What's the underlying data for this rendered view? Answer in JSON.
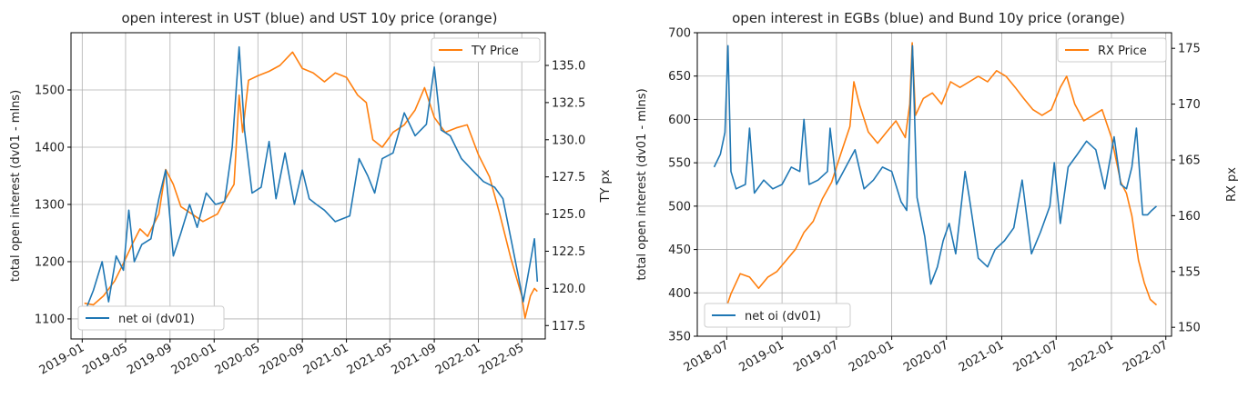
{
  "chart_data": [
    {
      "type": "line",
      "title": "open interest in UST (blue) and UST 10y price (orange)",
      "ylabel": "total open interest (dv01 - mlns)",
      "ylabel_right": "TY px",
      "x_ticks": [
        "2019-01",
        "2019-05",
        "2019-09",
        "2020-01",
        "2020-05",
        "2020-09",
        "2021-01",
        "2021-05",
        "2021-09",
        "2022-01",
        "2022-05"
      ],
      "xlim": [
        "2018-12-01",
        "2022-07-05"
      ],
      "y_ticks": [
        "1100",
        "1200",
        "1300",
        "1400",
        "1500"
      ],
      "ylim": [
        1065,
        1600
      ],
      "y2_ticks": [
        "117.5",
        "120.0",
        "122.5",
        "125.0",
        "127.5",
        "130.0",
        "132.5",
        "135.0"
      ],
      "y2lim": [
        116.6,
        137.2
      ],
      "grid": true,
      "series": [
        {
          "name": "net oi (dv01)",
          "axis": "left",
          "color": "#1f77b4",
          "legend_position": "lower-left",
          "x": [
            "2019-01-07",
            "2019-02-01",
            "2019-02-25",
            "2019-03-15",
            "2019-04-05",
            "2019-04-25",
            "2019-05-10",
            "2019-05-25",
            "2019-06-15",
            "2019-07-10",
            "2019-08-01",
            "2019-08-20",
            "2019-09-10",
            "2019-10-01",
            "2019-10-25",
            "2019-11-15",
            "2019-12-10",
            "2020-01-05",
            "2020-01-30",
            "2020-02-20",
            "2020-03-10",
            "2020-03-25",
            "2020-04-15",
            "2020-05-10",
            "2020-06-01",
            "2020-06-20",
            "2020-07-15",
            "2020-08-10",
            "2020-09-01",
            "2020-09-20",
            "2020-10-10",
            "2020-11-01",
            "2020-12-01",
            "2021-01-10",
            "2021-02-05",
            "2021-03-01",
            "2021-03-20",
            "2021-04-10",
            "2021-05-10",
            "2021-06-10",
            "2021-07-10",
            "2021-08-10",
            "2021-09-01",
            "2021-09-20",
            "2021-10-15",
            "2021-11-15",
            "2021-12-15",
            "2022-01-15",
            "2022-02-15",
            "2022-03-10",
            "2022-04-01",
            "2022-04-20",
            "2022-05-05",
            "2022-05-25",
            "2022-06-05",
            "2022-06-13"
          ],
          "values": [
            1110,
            1150,
            1200,
            1130,
            1210,
            1185,
            1290,
            1200,
            1230,
            1240,
            1310,
            1360,
            1210,
            1250,
            1300,
            1260,
            1320,
            1300,
            1305,
            1400,
            1575,
            1430,
            1320,
            1330,
            1410,
            1310,
            1390,
            1300,
            1360,
            1310,
            1300,
            1290,
            1270,
            1280,
            1380,
            1350,
            1320,
            1380,
            1390,
            1460,
            1420,
            1440,
            1540,
            1430,
            1420,
            1380,
            1360,
            1340,
            1330,
            1310,
            1240,
            1180,
            1130,
            1200,
            1240,
            1165
          ]
        },
        {
          "name": "TY Price",
          "axis": "right",
          "color": "#ff7f0e",
          "legend_position": "upper-right",
          "x": [
            "2019-01-07",
            "2019-02-01",
            "2019-03-01",
            "2019-04-01",
            "2019-05-01",
            "2019-05-20",
            "2019-06-10",
            "2019-07-01",
            "2019-08-01",
            "2019-08-20",
            "2019-09-10",
            "2019-10-01",
            "2019-11-01",
            "2019-12-01",
            "2020-01-10",
            "2020-02-01",
            "2020-02-25",
            "2020-03-10",
            "2020-03-20",
            "2020-04-05",
            "2020-05-01",
            "2020-06-01",
            "2020-07-01",
            "2020-08-05",
            "2020-09-01",
            "2020-10-01",
            "2020-11-01",
            "2020-12-01",
            "2021-01-01",
            "2021-02-01",
            "2021-02-25",
            "2021-03-15",
            "2021-04-10",
            "2021-05-10",
            "2021-06-10",
            "2021-07-10",
            "2021-08-05",
            "2021-09-01",
            "2021-10-01",
            "2021-11-01",
            "2021-12-01",
            "2022-01-01",
            "2022-02-01",
            "2022-03-01",
            "2022-04-01",
            "2022-05-01",
            "2022-05-10",
            "2022-05-25",
            "2022-06-05",
            "2022-06-13"
          ],
          "values": [
            119.0,
            118.9,
            119.5,
            120.5,
            122.0,
            123.0,
            124.0,
            123.5,
            125.0,
            128.0,
            127.0,
            125.5,
            125.0,
            124.5,
            125.0,
            126.0,
            127.0,
            133.0,
            130.5,
            134.0,
            134.3,
            134.6,
            135.0,
            135.9,
            134.8,
            134.5,
            133.9,
            134.5,
            134.2,
            133.0,
            132.5,
            130.0,
            129.5,
            130.5,
            131.0,
            132.0,
            133.5,
            131.5,
            130.5,
            130.8,
            131.0,
            129.0,
            127.5,
            125.0,
            122.0,
            119.5,
            118.0,
            119.5,
            120.0,
            119.8
          ]
        }
      ]
    },
    {
      "type": "line",
      "title": "open interest in EGBs (blue) and Bund 10y price (orange)",
      "ylabel": "total open interest (dv01 - mlns)",
      "ylabel_right": "RX px",
      "x_ticks": [
        "2018-07",
        "2019-01",
        "2019-07",
        "2020-01",
        "2020-07",
        "2021-01",
        "2021-07",
        "2022-01",
        "2022-07"
      ],
      "xlim": [
        "2018-03-25",
        "2022-07-20"
      ],
      "y_ticks": [
        "350",
        "400",
        "450",
        "500",
        "550",
        "600",
        "650",
        "700"
      ],
      "ylim": [
        350,
        700
      ],
      "y2_ticks": [
        "150",
        "155",
        "160",
        "165",
        "170",
        "175"
      ],
      "y2lim": [
        149.2,
        176.4
      ],
      "grid": true,
      "series": [
        {
          "name": "net oi (dv01)",
          "axis": "left",
          "color": "#1f77b4",
          "legend_position": "lower-left",
          "x": [
            "2018-05-20",
            "2018-06-10",
            "2018-06-25",
            "2018-07-05",
            "2018-07-15",
            "2018-08-01",
            "2018-09-01",
            "2018-09-15",
            "2018-10-01",
            "2018-11-01",
            "2018-12-01",
            "2019-01-01",
            "2019-02-01",
            "2019-03-01",
            "2019-03-15",
            "2019-04-01",
            "2019-05-01",
            "2019-06-01",
            "2019-06-10",
            "2019-07-01",
            "2019-08-01",
            "2019-09-01",
            "2019-10-01",
            "2019-11-01",
            "2019-12-01",
            "2020-01-01",
            "2020-02-01",
            "2020-02-20",
            "2020-03-10",
            "2020-03-25",
            "2020-04-20",
            "2020-05-10",
            "2020-06-01",
            "2020-06-20",
            "2020-07-10",
            "2020-08-01",
            "2020-09-01",
            "2020-09-15",
            "2020-10-15",
            "2020-11-15",
            "2020-12-10",
            "2021-01-10",
            "2021-02-10",
            "2021-03-10",
            "2021-04-10",
            "2021-05-10",
            "2021-06-10",
            "2021-06-25",
            "2021-07-15",
            "2021-08-10",
            "2021-09-10",
            "2021-10-10",
            "2021-11-10",
            "2021-12-10",
            "2022-01-10",
            "2022-02-01",
            "2022-02-20",
            "2022-03-10",
            "2022-03-25",
            "2022-04-15",
            "2022-05-01",
            "2022-05-15",
            "2022-05-31"
          ],
          "values": [
            545,
            560,
            585,
            685,
            540,
            520,
            525,
            590,
            515,
            530,
            520,
            525,
            545,
            540,
            600,
            525,
            530,
            540,
            590,
            525,
            545,
            565,
            520,
            530,
            545,
            540,
            505,
            495,
            685,
            510,
            465,
            410,
            430,
            460,
            480,
            445,
            540,
            510,
            440,
            430,
            450,
            460,
            475,
            530,
            445,
            470,
            500,
            550,
            480,
            545,
            560,
            575,
            565,
            520,
            580,
            525,
            520,
            545,
            590,
            490,
            490,
            495,
            500
          ]
        },
        {
          "name": "RX Price",
          "axis": "right",
          "color": "#ff7f0e",
          "legend_position": "upper-right",
          "x": [
            "2018-05-20",
            "2018-06-20",
            "2018-07-15",
            "2018-08-15",
            "2018-09-15",
            "2018-10-15",
            "2018-11-15",
            "2018-12-15",
            "2019-01-15",
            "2019-02-15",
            "2019-03-15",
            "2019-04-15",
            "2019-05-15",
            "2019-06-15",
            "2019-07-15",
            "2019-08-15",
            "2019-08-28",
            "2019-09-15",
            "2019-10-15",
            "2019-11-15",
            "2019-12-15",
            "2020-01-15",
            "2020-02-15",
            "2020-03-01",
            "2020-03-09",
            "2020-03-20",
            "2020-04-15",
            "2020-05-15",
            "2020-06-15",
            "2020-07-15",
            "2020-08-15",
            "2020-09-15",
            "2020-10-15",
            "2020-11-15",
            "2020-12-15",
            "2021-01-15",
            "2021-02-15",
            "2021-03-15",
            "2021-04-15",
            "2021-05-15",
            "2021-06-15",
            "2021-07-15",
            "2021-08-05",
            "2021-09-01",
            "2021-10-01",
            "2021-11-01",
            "2021-12-01",
            "2022-01-01",
            "2022-02-01",
            "2022-02-20",
            "2022-03-10",
            "2022-04-01",
            "2022-04-20",
            "2022-05-10",
            "2022-05-31"
          ],
          "values": [
            150.2,
            151.0,
            153.0,
            154.8,
            154.5,
            153.5,
            154.5,
            155.0,
            156.0,
            157.0,
            158.5,
            159.5,
            161.5,
            163.0,
            165.5,
            168.0,
            172.0,
            170.0,
            167.5,
            166.5,
            167.5,
            168.5,
            167.0,
            170.0,
            175.5,
            169.0,
            170.5,
            171.0,
            170.0,
            172.0,
            171.5,
            172.0,
            172.5,
            172.0,
            173.0,
            172.5,
            171.5,
            170.5,
            169.5,
            169.0,
            169.5,
            171.5,
            172.5,
            170.0,
            168.5,
            169.0,
            169.5,
            167.0,
            163.0,
            162.0,
            160.0,
            156.0,
            154.0,
            152.5,
            152.0
          ]
        }
      ]
    }
  ]
}
